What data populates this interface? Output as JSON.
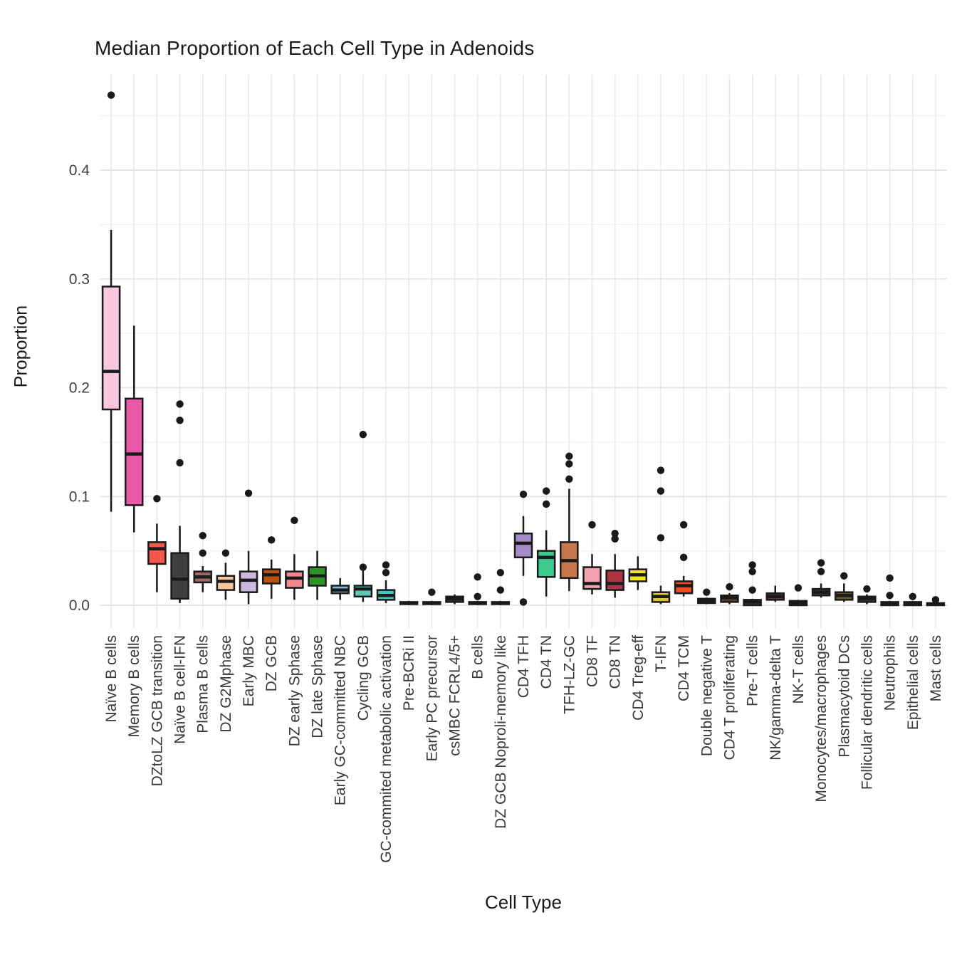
{
  "chart_data": {
    "type": "boxplot",
    "title": "Median Proportion of Each Cell Type in Adenoids",
    "xlabel": "Cell Type",
    "ylabel": "Proportion",
    "yticks": [
      0.0,
      0.1,
      0.2,
      0.3,
      0.4
    ],
    "ylim": [
      -0.012,
      0.488
    ],
    "grid": "on",
    "legend": "none",
    "styles": {
      "stroke": "#1a1a1a",
      "grid_major": "#e3e3e3",
      "grid_minor": "#efefef",
      "grid_vertical": "#e8e8e8",
      "tick_label_color": "#404040",
      "category_label_color": "#383838",
      "background": "#ffffff"
    },
    "boxes": [
      {
        "label": "Naïve B cells",
        "color": "#f9c6df",
        "whislo": 0.086,
        "q1": 0.18,
        "med": 0.215,
        "q3": 0.293,
        "whishi": 0.345,
        "fliers": [
          0.469
        ]
      },
      {
        "label": "Memory B cells",
        "color": "#ec57a8",
        "whislo": 0.067,
        "q1": 0.092,
        "med": 0.139,
        "q3": 0.19,
        "whishi": 0.257,
        "fliers": []
      },
      {
        "label": "DZtoLZ GCB transition",
        "color": "#f4564a",
        "whislo": 0.012,
        "q1": 0.038,
        "med": 0.052,
        "q3": 0.058,
        "whishi": 0.075,
        "fliers": [
          0.098
        ]
      },
      {
        "label": "Naïve B cell-IFN",
        "color": "#3f3f3f",
        "whislo": 0.002,
        "q1": 0.006,
        "med": 0.024,
        "q3": 0.048,
        "whishi": 0.073,
        "fliers": [
          0.185,
          0.17,
          0.131
        ]
      },
      {
        "label": "Plasma B cells",
        "color": "#9e6a5c",
        "whislo": 0.012,
        "q1": 0.021,
        "med": 0.026,
        "q3": 0.031,
        "whishi": 0.036,
        "fliers": [
          0.064,
          0.048
        ]
      },
      {
        "label": "DZ G2Mphase",
        "color": "#fbc79a",
        "whislo": 0.005,
        "q1": 0.014,
        "med": 0.022,
        "q3": 0.027,
        "whishi": 0.039,
        "fliers": [
          0.048
        ]
      },
      {
        "label": "Early MBC",
        "color": "#cdb8dc",
        "whislo": 0.001,
        "q1": 0.012,
        "med": 0.023,
        "q3": 0.031,
        "whishi": 0.05,
        "fliers": [
          0.103
        ]
      },
      {
        "label": "DZ GCB",
        "color": "#bc5210",
        "whislo": 0.006,
        "q1": 0.02,
        "med": 0.028,
        "q3": 0.033,
        "whishi": 0.042,
        "fliers": [
          0.06
        ]
      },
      {
        "label": "DZ early  Sphase",
        "color": "#f4878e",
        "whislo": 0.005,
        "q1": 0.016,
        "med": 0.025,
        "q3": 0.031,
        "whishi": 0.047,
        "fliers": [
          0.078
        ]
      },
      {
        "label": "DZ late Sphase",
        "color": "#2e9427",
        "whislo": 0.005,
        "q1": 0.018,
        "med": 0.027,
        "q3": 0.035,
        "whishi": 0.05,
        "fliers": []
      },
      {
        "label": "Early GC-committed NBC",
        "color": "#85bcd8",
        "whislo": 0.005,
        "q1": 0.011,
        "med": 0.014,
        "q3": 0.018,
        "whishi": 0.025,
        "fliers": []
      },
      {
        "label": "Cycling GCB",
        "color": "#5bc8b4",
        "whislo": 0.003,
        "q1": 0.008,
        "med": 0.015,
        "q3": 0.018,
        "whishi": 0.033,
        "fliers": [
          0.157,
          0.035
        ]
      },
      {
        "label": "GC-commited metabolic activation",
        "color": "#3bc8c0",
        "whislo": 0.002,
        "q1": 0.005,
        "med": 0.009,
        "q3": 0.014,
        "whishi": 0.023,
        "fliers": [
          0.037,
          0.03
        ]
      },
      {
        "label": "Pre-BCRi II",
        "color": "#3d3d3d",
        "whislo": 0.0,
        "q1": 0.001,
        "med": 0.002,
        "q3": 0.003,
        "whishi": 0.004,
        "fliers": []
      },
      {
        "label": "Early PC precursor",
        "color": "#3d3d3d",
        "whislo": 0.0,
        "q1": 0.001,
        "med": 0.002,
        "q3": 0.003,
        "whishi": 0.004,
        "fliers": [
          0.012
        ]
      },
      {
        "label": "csMBC FCRL4/5+",
        "color": "#443228",
        "whislo": 0.001,
        "q1": 0.003,
        "med": 0.006,
        "q3": 0.008,
        "whishi": 0.01,
        "fliers": []
      },
      {
        "label": "B cells",
        "color": "#3d3d3d",
        "whislo": 0.0,
        "q1": 0.001,
        "med": 0.002,
        "q3": 0.003,
        "whishi": 0.004,
        "fliers": [
          0.026,
          0.008
        ]
      },
      {
        "label": "DZ GCB Noproli-memory like",
        "color": "#3d3d3d",
        "whislo": 0.0,
        "q1": 0.001,
        "med": 0.002,
        "q3": 0.003,
        "whishi": 0.004,
        "fliers": [
          0.03,
          0.014
        ]
      },
      {
        "label": "CD4 TFH",
        "color": "#a58bc8",
        "whislo": 0.027,
        "q1": 0.044,
        "med": 0.057,
        "q3": 0.066,
        "whishi": 0.082,
        "fliers": [
          0.102,
          0.003
        ]
      },
      {
        "label": "CD4 TN",
        "color": "#3dc88e",
        "whislo": 0.008,
        "q1": 0.026,
        "med": 0.044,
        "q3": 0.05,
        "whishi": 0.069,
        "fliers": [
          0.105,
          0.093
        ]
      },
      {
        "label": "TFH-LZ-GC",
        "color": "#c8774f",
        "whislo": 0.013,
        "q1": 0.025,
        "med": 0.041,
        "q3": 0.058,
        "whishi": 0.107,
        "fliers": [
          0.137,
          0.13,
          0.116
        ]
      },
      {
        "label": "CD8 TF",
        "color": "#f2a3ab",
        "whislo": 0.01,
        "q1": 0.015,
        "med": 0.02,
        "q3": 0.035,
        "whishi": 0.047,
        "fliers": [
          0.074
        ]
      },
      {
        "label": "CD8 TN",
        "color": "#b03542",
        "whislo": 0.007,
        "q1": 0.014,
        "med": 0.02,
        "q3": 0.032,
        "whishi": 0.047,
        "fliers": [
          0.066,
          0.061
        ]
      },
      {
        "label": "CD4 Treg-eff",
        "color": "#f5e616",
        "whislo": 0.014,
        "q1": 0.022,
        "med": 0.028,
        "q3": 0.033,
        "whishi": 0.045,
        "fliers": []
      },
      {
        "label": "T-IFN",
        "color": "#d8c832",
        "whislo": 0.001,
        "q1": 0.003,
        "med": 0.008,
        "q3": 0.012,
        "whishi": 0.018,
        "fliers": [
          0.124,
          0.105,
          0.062
        ]
      },
      {
        "label": "CD4 TCM",
        "color": "#f4481e",
        "whislo": 0.008,
        "q1": 0.011,
        "med": 0.018,
        "q3": 0.022,
        "whishi": 0.027,
        "fliers": [
          0.074,
          0.044
        ]
      },
      {
        "label": "Double negative T",
        "color": "#3d3d3d",
        "whislo": 0.001,
        "q1": 0.002,
        "med": 0.004,
        "q3": 0.006,
        "whishi": 0.007,
        "fliers": [
          0.012
        ]
      },
      {
        "label": "CD4 T proliferating",
        "color": "#5c3a2e",
        "whislo": 0.001,
        "q1": 0.003,
        "med": 0.007,
        "q3": 0.009,
        "whishi": 0.011,
        "fliers": [
          0.017
        ]
      },
      {
        "label": "Pre-T cells",
        "color": "#4a2e2e",
        "whislo": 0.0,
        "q1": 0.0,
        "med": 0.003,
        "q3": 0.005,
        "whishi": 0.006,
        "fliers": [
          0.037,
          0.031,
          0.014
        ]
      },
      {
        "label": "NK/gamma-delta T",
        "color": "#54392b",
        "whislo": 0.003,
        "q1": 0.005,
        "med": 0.008,
        "q3": 0.011,
        "whishi": 0.018,
        "fliers": []
      },
      {
        "label": "NK-T cells",
        "color": "#3d3d3d",
        "whislo": 0.0,
        "q1": 0.0,
        "med": 0.002,
        "q3": 0.004,
        "whishi": 0.005,
        "fliers": [
          0.016
        ]
      },
      {
        "label": "Monocytes/macrophages",
        "color": "#3d3d3d",
        "whislo": 0.007,
        "q1": 0.009,
        "med": 0.012,
        "q3": 0.015,
        "whishi": 0.02,
        "fliers": [
          0.039,
          0.031
        ]
      },
      {
        "label": "Plasmacytoid DCs",
        "color": "#6b5a1e",
        "whislo": 0.003,
        "q1": 0.005,
        "med": 0.009,
        "q3": 0.012,
        "whishi": 0.02,
        "fliers": [
          0.027
        ]
      },
      {
        "label": "Follicular dendritic cells",
        "color": "#3d3d3d",
        "whislo": 0.001,
        "q1": 0.003,
        "med": 0.006,
        "q3": 0.008,
        "whishi": 0.01,
        "fliers": [
          0.015
        ]
      },
      {
        "label": "Neutrophils",
        "color": "#3d3d3d",
        "whislo": 0.0,
        "q1": 0.0,
        "med": 0.001,
        "q3": 0.003,
        "whishi": 0.004,
        "fliers": [
          0.025,
          0.009
        ]
      },
      {
        "label": "Epithelial cells",
        "color": "#3d3d3d",
        "whislo": 0.0,
        "q1": 0.0,
        "med": 0.001,
        "q3": 0.003,
        "whishi": 0.004,
        "fliers": [
          0.008
        ]
      },
      {
        "label": "Mast cells",
        "color": "#3d3d3d",
        "whislo": 0.0,
        "q1": 0.0,
        "med": 0.001,
        "q3": 0.002,
        "whishi": 0.003,
        "fliers": [
          0.005
        ]
      }
    ]
  }
}
